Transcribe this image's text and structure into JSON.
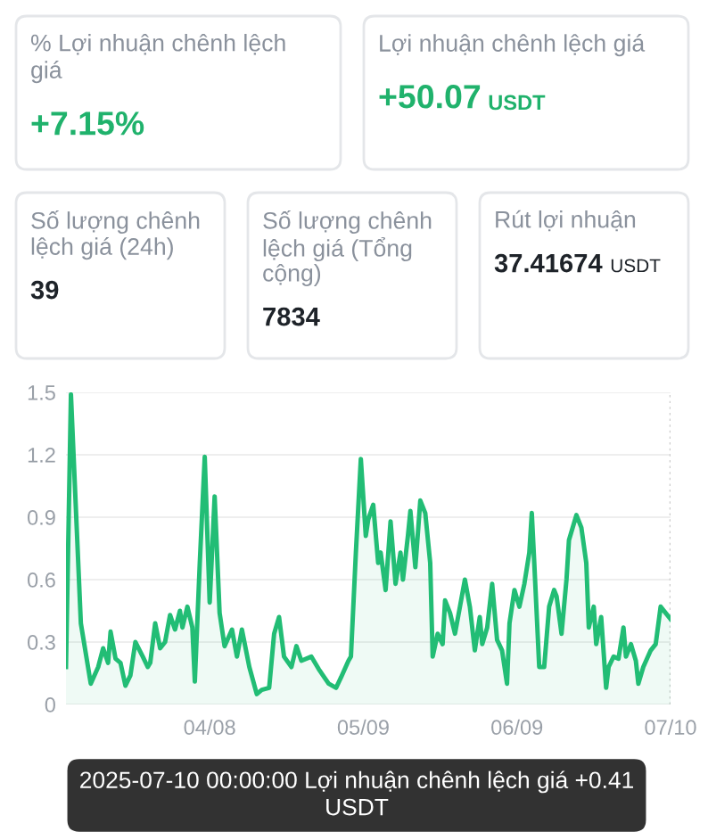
{
  "chart_data": [
    {
      "type": "other",
      "title": "% Lợi nhuận chênh lệch giá",
      "annotations": [
        "+7.15%"
      ],
      "color": "#20b26c"
    },
    {
      "type": "other",
      "title": "Lợi nhuận chênh lệch giá",
      "annotations": [
        "+50.07",
        "USDT"
      ],
      "color": "#20b26c"
    },
    {
      "type": "other",
      "title": "Số lượng chênh lệch giá (24h)",
      "annotations": [
        "39"
      ],
      "color": "#1e2329"
    },
    {
      "type": "other",
      "title": "Số lượng chênh lệch giá (Tổng cộng)",
      "annotations": [
        "7834"
      ],
      "color": "#1e2329"
    },
    {
      "type": "other",
      "title": "Rút lợi nhuận",
      "annotations": [
        "37.41674",
        "USDT"
      ],
      "color": "#1e2329"
    },
    {
      "type": "area",
      "x": [
        "2025-03-10T00:00",
        "2025-03-11T00:00",
        "2025-03-13T00:00",
        "2025-03-15T00:00",
        "2025-03-16T12:00",
        "2025-03-17T12:00",
        "2025-03-18T12:00",
        "2025-03-19T00:00",
        "2025-03-20T00:00",
        "2025-03-21T00:00",
        "2025-03-22T00:00",
        "2025-03-23T00:00",
        "2025-03-24T00:00",
        "2025-03-25T12:00",
        "2025-03-26T12:00",
        "2025-03-27T00:00",
        "2025-03-28T00:00",
        "2025-03-29T00:00",
        "2025-03-30T00:00",
        "2025-03-31T00:00",
        "2025-04-01T00:00",
        "2025-04-02T00:00",
        "2025-04-02T12:00",
        "2025-04-03T12:00",
        "2025-04-04T12:00",
        "2025-04-05T00:00",
        "2025-04-06T00:00",
        "2025-04-07T00:00",
        "2025-04-08T00:00",
        "2025-04-09T00:00",
        "2025-04-10T00:00",
        "2025-04-11T00:00",
        "2025-04-12T12:00",
        "2025-04-13T12:00",
        "2025-04-14T12:00",
        "2025-04-16T00:00",
        "2025-04-17T12:00",
        "2025-04-18T12:00",
        "2025-04-20T00:00",
        "2025-04-21T00:00",
        "2025-04-22T00:00",
        "2025-04-23T00:00",
        "2025-04-24T12:00",
        "2025-04-25T12:00",
        "2025-04-26T12:00",
        "2025-04-28T12:00",
        "2025-04-30T00:00",
        "2025-05-02T00:00",
        "2025-05-03T12:00",
        "2025-05-04T12:00",
        "2025-05-06T00:00",
        "2025-05-06T12:00",
        "2025-05-07T12:00",
        "2025-05-08T12:00",
        "2025-05-09T12:00",
        "2025-05-10T00:00",
        "2025-05-11T00:00",
        "2025-05-12T00:00",
        "2025-05-12T12:00",
        "2025-05-13T12:00",
        "2025-05-14T12:00",
        "2025-05-15T12:00",
        "2025-05-16T12:00",
        "2025-05-17T00:00",
        "2025-05-18T00:00",
        "2025-05-18T12:00",
        "2025-05-19T12:00",
        "2025-05-20T12:00",
        "2025-05-21T12:00",
        "2025-05-22T12:00",
        "2025-05-23T00:00",
        "2025-05-24T00:00",
        "2025-05-25T00:00",
        "2025-05-25T12:00",
        "2025-05-26T12:00",
        "2025-05-27T12:00",
        "2025-05-28T12:00",
        "2025-05-29T12:00",
        "2025-05-30T12:00",
        "2025-05-31T12:00",
        "2025-06-01T12:00",
        "2025-06-02T00:00",
        "2025-06-03T00:00",
        "2025-06-04T00:00",
        "2025-06-05T00:00",
        "2025-06-06T00:00",
        "2025-06-07T00:00",
        "2025-06-07T12:00",
        "2025-06-08T12:00",
        "2025-06-09T12:00",
        "2025-06-10T12:00",
        "2025-06-11T12:00",
        "2025-06-12T00:00",
        "2025-06-12T12:00",
        "2025-06-13T12:00",
        "2025-06-14T12:00",
        "2025-06-15T12:00",
        "2025-06-16T12:00",
        "2025-06-17T00:00",
        "2025-06-18T00:00",
        "2025-06-19T00:00",
        "2025-06-19T12:00",
        "2025-06-20T12:00",
        "2025-06-21T00:00",
        "2025-06-22T00:00",
        "2025-06-23T00:00",
        "2025-06-23T12:00",
        "2025-06-24T12:00",
        "2025-06-25T00:00",
        "2025-06-26T00:00",
        "2025-06-27T00:00",
        "2025-06-27T12:00",
        "2025-06-28T12:00",
        "2025-06-29T12:00",
        "2025-06-30T12:00",
        "2025-07-01T00:00",
        "2025-07-02T00:00",
        "2025-07-03T00:00",
        "2025-07-03T12:00",
        "2025-07-04T12:00",
        "2025-07-06T00:00",
        "2025-07-07T00:00",
        "2025-07-08T00:00",
        "2025-07-10T00:00"
      ],
      "series": [
        {
          "color": "#22bd75",
          "values": [
            0.18,
            1.49,
            0.39,
            0.1,
            0.18,
            0.27,
            0.2,
            0.35,
            0.22,
            0.2,
            0.09,
            0.14,
            0.3,
            0.23,
            0.18,
            0.2,
            0.39,
            0.27,
            0.3,
            0.43,
            0.36,
            0.45,
            0.37,
            0.47,
            0.37,
            0.11,
            0.68,
            1.19,
            0.49,
            1.0,
            0.44,
            0.28,
            0.36,
            0.23,
            0.36,
            0.18,
            0.05,
            0.07,
            0.08,
            0.34,
            0.42,
            0.23,
            0.18,
            0.28,
            0.21,
            0.23,
            0.17,
            0.1,
            0.08,
            0.13,
            0.21,
            0.23,
            0.73,
            1.18,
            0.81,
            0.89,
            0.96,
            0.68,
            0.73,
            0.55,
            0.88,
            0.58,
            0.73,
            0.6,
            0.81,
            0.93,
            0.66,
            0.98,
            0.92,
            0.68,
            0.23,
            0.34,
            0.29,
            0.5,
            0.44,
            0.34,
            0.47,
            0.6,
            0.47,
            0.26,
            0.42,
            0.29,
            0.37,
            0.58,
            0.31,
            0.26,
            0.1,
            0.39,
            0.55,
            0.47,
            0.58,
            0.73,
            0.92,
            0.68,
            0.18,
            0.18,
            0.47,
            0.55,
            0.52,
            0.34,
            0.6,
            0.79,
            0.87,
            0.91,
            0.85,
            0.68,
            0.37,
            0.47,
            0.29,
            0.42,
            0.08,
            0.18,
            0.23,
            0.22,
            0.37,
            0.23,
            0.29,
            0.21,
            0.1,
            0.18,
            0.26,
            0.29,
            0.47,
            0.41
          ]
        }
      ],
      "xlim": [
        "2025-03-10T00:00",
        "2025-07-10T00:00"
      ],
      "xticks": [
        {
          "value": "2025-04-08",
          "label": "04/08"
        },
        {
          "value": "2025-05-09",
          "label": "05/09"
        },
        {
          "value": "2025-06-09",
          "label": "06/09"
        },
        {
          "value": "2025-07-10",
          "label": "07/10"
        }
      ],
      "ylim": [
        0,
        1.5
      ],
      "yticks": [
        0,
        0.3,
        0.6,
        0.9,
        1.2,
        1.5
      ],
      "grid": "y",
      "marker": "none",
      "line_style": "solid",
      "ref_lines": [
        {
          "axis": "x",
          "value": "2025-07-10",
          "line_style": "dotted",
          "color": "#cccccc"
        }
      ],
      "annotations": [
        "2025-07-10 00:00:00 Lợi nhuận chênh lệch giá +0.41 USDT"
      ]
    }
  ]
}
